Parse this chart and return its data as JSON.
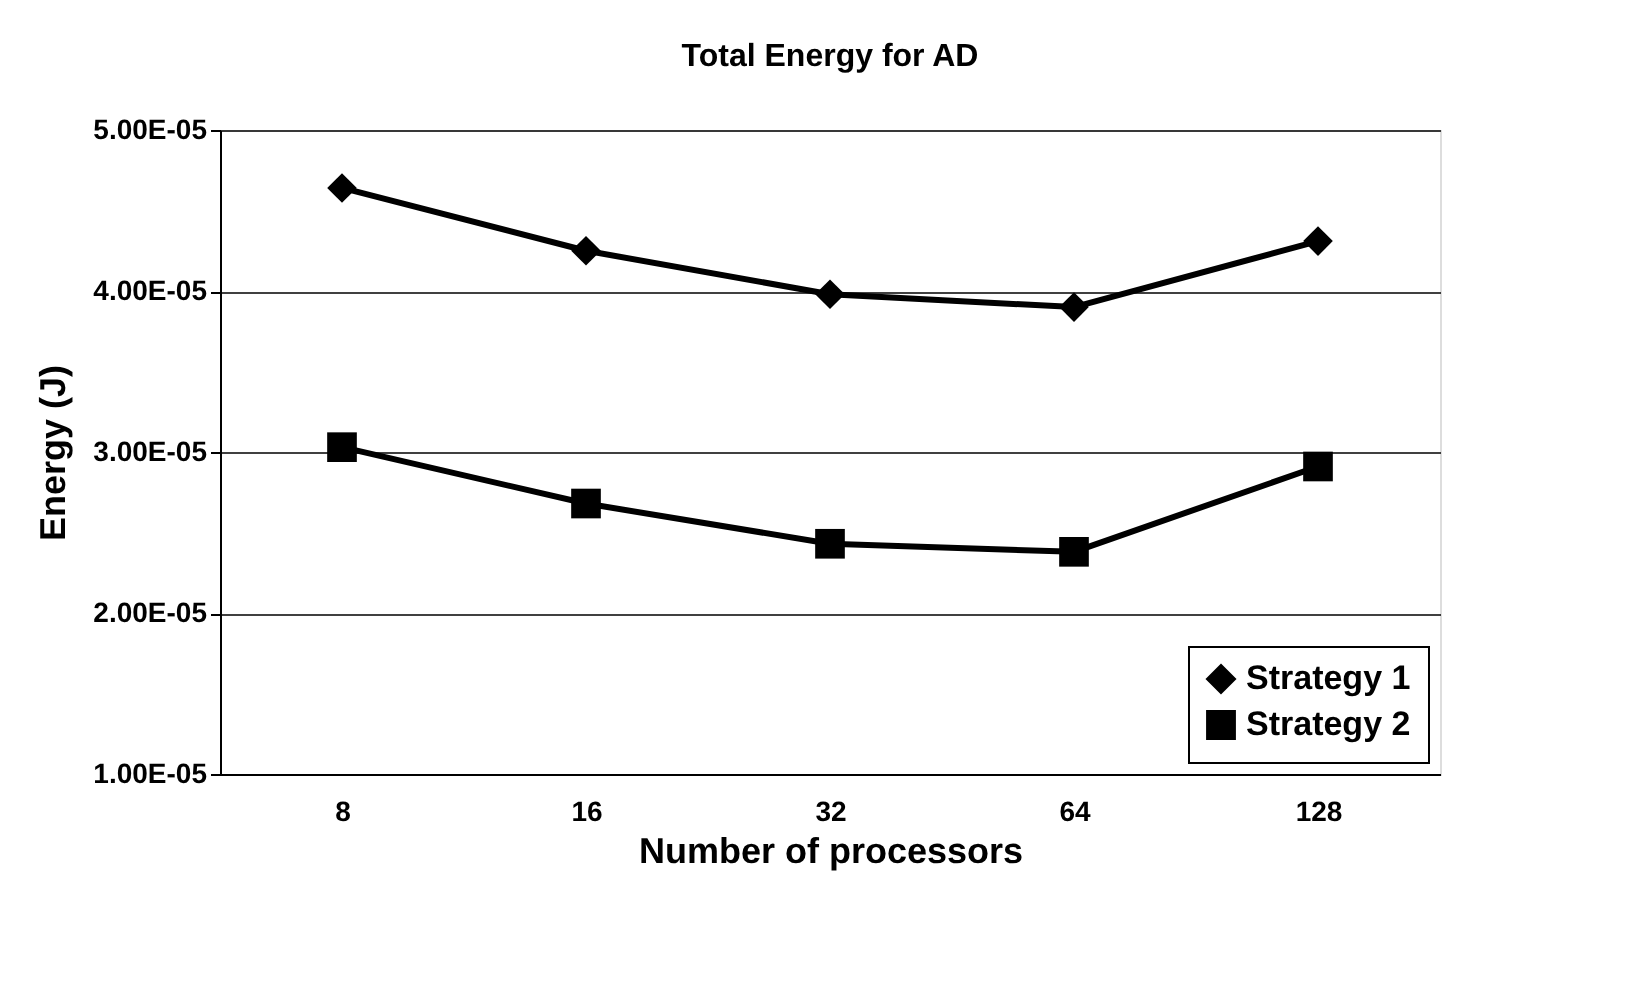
{
  "chart_data": {
    "type": "line",
    "title": "Total Energy for AD",
    "xlabel": "Number of processors",
    "ylabel": "Energy (J)",
    "categories": [
      "8",
      "16",
      "32",
      "64",
      "128"
    ],
    "series": [
      {
        "name": "Strategy 1",
        "color": "#000000",
        "marker": "diamond",
        "values": [
          4.64e-05,
          4.25e-05,
          3.98e-05,
          3.9e-05,
          4.31e-05
        ]
      },
      {
        "name": "Strategy 2",
        "color": "#000000",
        "marker": "square",
        "values": [
          3.03e-05,
          2.68e-05,
          2.43e-05,
          2.38e-05,
          2.91e-05
        ]
      }
    ],
    "ylim": [
      1e-05,
      5e-05
    ],
    "yticks": [
      {
        "value": 1e-05,
        "label": "1.00E-05"
      },
      {
        "value": 2e-05,
        "label": "2.00E-05"
      },
      {
        "value": 3e-05,
        "label": "3.00E-05"
      },
      {
        "value": 4e-05,
        "label": "4.00E-05"
      },
      {
        "value": 5e-05,
        "label": "5.00E-05"
      }
    ],
    "grid": "y",
    "legend": "bottom right",
    "line_style": "solid"
  }
}
